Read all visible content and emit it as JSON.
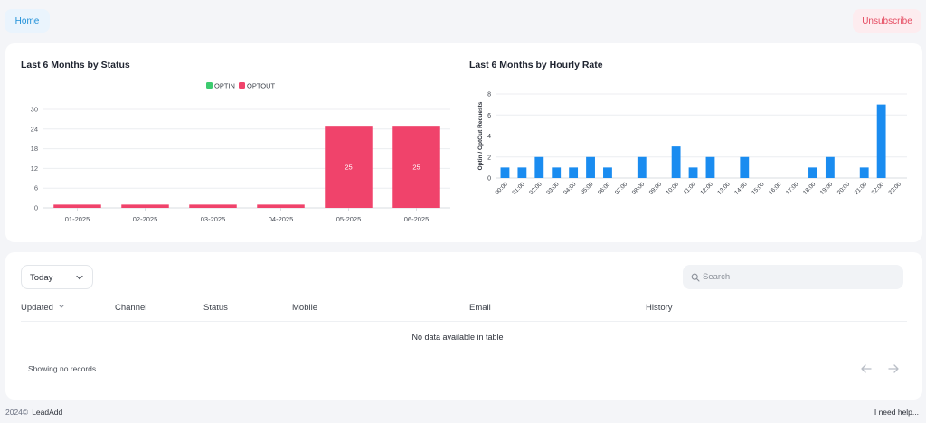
{
  "topbar": {
    "home_label": "Home",
    "unsubscribe_label": "Unsubscribe"
  },
  "colors": {
    "optin": "#3dcb6f",
    "optout": "#f0436b",
    "hourly": "#1a8cf0"
  },
  "charts": {
    "status": {
      "title": "Last 6 Months by Status",
      "legend": [
        "OPTIN",
        "OPTOUT"
      ]
    },
    "hourly": {
      "title": "Last 6 Months by Hourly Rate",
      "ylabel": "Optin / OptOut Requests"
    }
  },
  "chart_data": [
    {
      "type": "bar",
      "title": "Last 6 Months by Status",
      "categories": [
        "01-2025",
        "02-2025",
        "03-2025",
        "04-2025",
        "05-2025",
        "06-2025"
      ],
      "series": [
        {
          "name": "OPTIN",
          "values": [
            0,
            0,
            0,
            0,
            0,
            0
          ]
        },
        {
          "name": "OPTOUT",
          "values": [
            1,
            1,
            1,
            1,
            25,
            25
          ]
        }
      ],
      "data_labels": [
        "",
        "",
        "",
        "",
        "25",
        "25"
      ],
      "yticks": [
        0,
        6,
        12,
        18,
        24,
        30
      ],
      "ylim": [
        0,
        30
      ],
      "legend": "top-center"
    },
    {
      "type": "bar",
      "title": "Last 6 Months by Hourly Rate",
      "ylabel": "Optin / OptOut Requests",
      "categories": [
        "00:00",
        "01:00",
        "02:00",
        "03:00",
        "04:00",
        "05:00",
        "06:00",
        "07:00",
        "08:00",
        "09:00",
        "10:00",
        "11:00",
        "12:00",
        "13:00",
        "14:00",
        "15:00",
        "16:00",
        "17:00",
        "18:00",
        "19:00",
        "20:00",
        "21:00",
        "22:00",
        "23:00"
      ],
      "values": [
        1,
        1,
        2,
        1,
        1,
        2,
        1,
        0,
        2,
        0,
        3,
        1,
        2,
        0,
        2,
        0,
        0,
        0,
        1,
        2,
        0,
        1,
        7,
        0
      ],
      "yticks": [
        0,
        2,
        4,
        6,
        8
      ],
      "ylim": [
        0,
        8
      ]
    }
  ],
  "table": {
    "filter_value": "Today",
    "search_placeholder": "Search",
    "columns": [
      "Updated",
      "Channel",
      "Status",
      "Mobile",
      "Email",
      "History"
    ],
    "empty_message": "No data available in table",
    "showing_text": "Showing no records"
  },
  "footer": {
    "year": "2024©",
    "brand": "LeadAdd",
    "help": "I need help..."
  }
}
